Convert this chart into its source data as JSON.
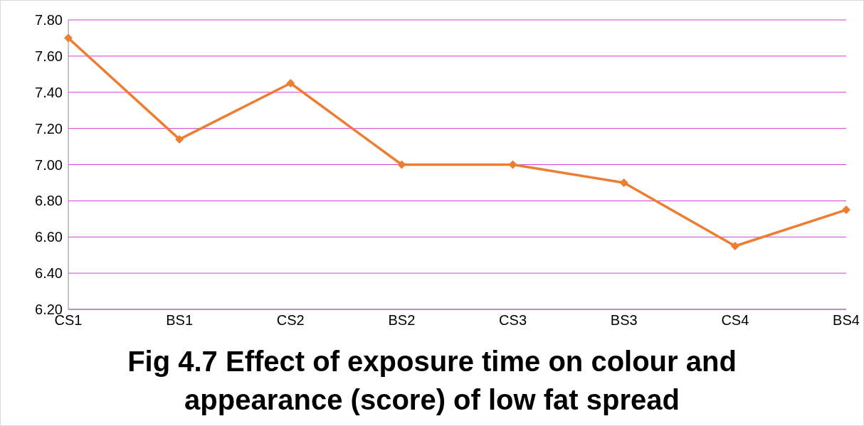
{
  "chart_data": {
    "type": "line",
    "title": "Fig 4.7 Effect of exposure time on colour and appearance (score) of low fat spread",
    "categories": [
      "CS1",
      "BS1",
      "CS2",
      "BS2",
      "CS3",
      "BS3",
      "CS4",
      "BS4"
    ],
    "series": [
      {
        "color": "#ed7d31",
        "values": [
          7.7,
          7.14,
          7.45,
          7.0,
          7.0,
          6.9,
          6.55,
          6.75
        ]
      }
    ],
    "ylim": [
      6.2,
      7.8
    ],
    "yticks": [
      {
        "value": 6.2,
        "label": "6.20"
      },
      {
        "value": 6.4,
        "label": "6.40"
      },
      {
        "value": 6.6,
        "label": "6.60"
      },
      {
        "value": 6.8,
        "label": "6.80"
      },
      {
        "value": 7.0,
        "label": "7.00"
      },
      {
        "value": 7.2,
        "label": "7.20"
      },
      {
        "value": 7.4,
        "label": "7.40"
      },
      {
        "value": 7.6,
        "label": "7.60"
      },
      {
        "value": 7.8,
        "label": "7.80"
      }
    ],
    "grid": "y",
    "legend": false,
    "marker": "diamond",
    "line_style": "solid"
  }
}
